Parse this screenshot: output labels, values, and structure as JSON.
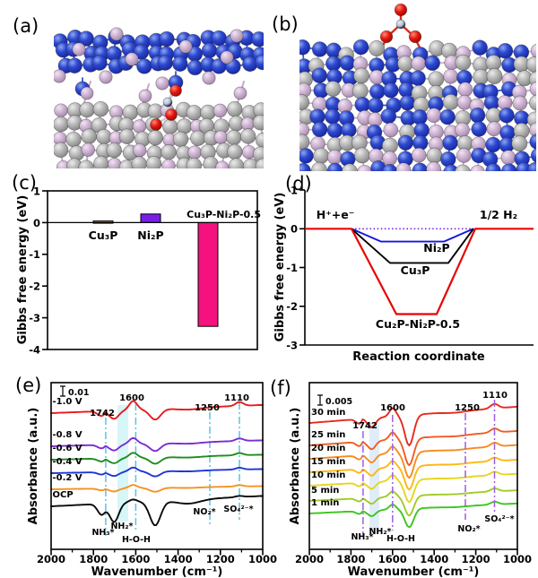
{
  "panels": {
    "a": {
      "label": "(a)"
    },
    "b": {
      "label": "(b)"
    },
    "c": {
      "label": "(c)"
    },
    "d": {
      "label": "(d)"
    },
    "e": {
      "label": "(e)"
    },
    "f": {
      "label": "(f)"
    }
  },
  "structures": {
    "atom_colors": {
      "blue": "#2a4fc9",
      "pink": "#cdb2d2",
      "gray": "#b5b5b5",
      "red": "#e41811",
      "ngray": "#b4c0dc"
    }
  },
  "chart_data": [
    {
      "id": "c",
      "type": "bar",
      "ylabel": "Gibbs free energy (eV)",
      "ylim": [
        -4,
        1
      ],
      "yticks": [
        "1",
        "0",
        "-1",
        "-2",
        "-3",
        "-4"
      ],
      "categories": [
        "Cu₃P",
        "Ni₂P",
        "Cu₃P-Ni₂P-0.5"
      ],
      "values": [
        0.05,
        0.27,
        -3.27
      ],
      "bar_colors": [
        "#c4731c",
        "#7a1de8",
        "#f5127e"
      ]
    },
    {
      "id": "d",
      "type": "line",
      "ylabel": "Gibbs free energy (eV)",
      "xlabel": "Reaction coordinate",
      "ylim": [
        -3,
        1
      ],
      "yticks": [
        "1",
        "0",
        "-1",
        "-2",
        "-3"
      ],
      "initial_state_label": "H⁺+e⁻",
      "final_state_label": "1/2 H₂",
      "series": [
        {
          "name": "Ni₂P",
          "color": "#1616e0",
          "well_energy_eV": -0.33
        },
        {
          "name": "Cu₃P",
          "color": "#000000",
          "well_energy_eV": -0.88
        },
        {
          "name": "Cu₂P-Ni₂P-0.5",
          "color": "#e60400",
          "well_energy_eV": -2.2
        }
      ],
      "reference": {
        "value": 0,
        "color": "#7a1fe0"
      }
    },
    {
      "id": "e",
      "type": "line",
      "xlabel": "Wavenumber (cm⁻¹)",
      "ylabel": "Absorbance (a.u.)",
      "xlim": [
        2000,
        1000
      ],
      "xticks": [
        "2000",
        "1800",
        "1600",
        "1400",
        "1200",
        "1000"
      ],
      "scale_bar_label": "0.01",
      "peak_labels": [
        "1742",
        "1600",
        "1250",
        "1110"
      ],
      "peak_wavenumbers": [
        1742,
        1600,
        1250,
        1110
      ],
      "species_labels": [
        "NH₃*",
        "NH₂*",
        "H-O-H",
        "NO₂*",
        "SO₄²⁻*"
      ],
      "guide_color": "#59c3e6",
      "band_color": "#b7eef2",
      "curves": [
        {
          "label": "-1.0 V",
          "color": "#e8191c"
        },
        {
          "label": "-0.8 V",
          "color": "#7e2bd2"
        },
        {
          "label": "-0.6 V",
          "color": "#1f8c1f"
        },
        {
          "label": "-0.4 V",
          "color": "#1f35d4"
        },
        {
          "label": "-0.2 V",
          "color": "#f59222"
        },
        {
          "label": "OCP",
          "color": "#0a0a0a"
        }
      ]
    },
    {
      "id": "f",
      "type": "line",
      "xlabel": "Wavenumber (cm⁻¹)",
      "ylabel": "Absorbance (a.u.)",
      "xlim": [
        2000,
        1000
      ],
      "xticks": [
        "2000",
        "1800",
        "1600",
        "1400",
        "1200",
        "1000"
      ],
      "scale_bar_label": "0.005",
      "peak_labels": [
        "1742",
        "1600",
        "1250",
        "1110"
      ],
      "peak_wavenumbers": [
        1742,
        1600,
        1250,
        1110
      ],
      "species_labels": [
        "NH₃*",
        "NH₂*",
        "H-O-H",
        "NO₂*",
        "SO₄²⁻*"
      ],
      "guide_color": "#a05ce0",
      "band_color": "#d7e9f8",
      "curves": [
        {
          "label": "30 min",
          "color": "#e8291d"
        },
        {
          "label": "25 min",
          "color": "#ef5c24"
        },
        {
          "label": "20 min",
          "color": "#f68b1f"
        },
        {
          "label": "15 min",
          "color": "#fdb714"
        },
        {
          "label": "10 min",
          "color": "#e8d41e"
        },
        {
          "label": "5 min",
          "color": "#a0cc28"
        },
        {
          "label": "1 min",
          "color": "#3dc522"
        }
      ]
    }
  ]
}
